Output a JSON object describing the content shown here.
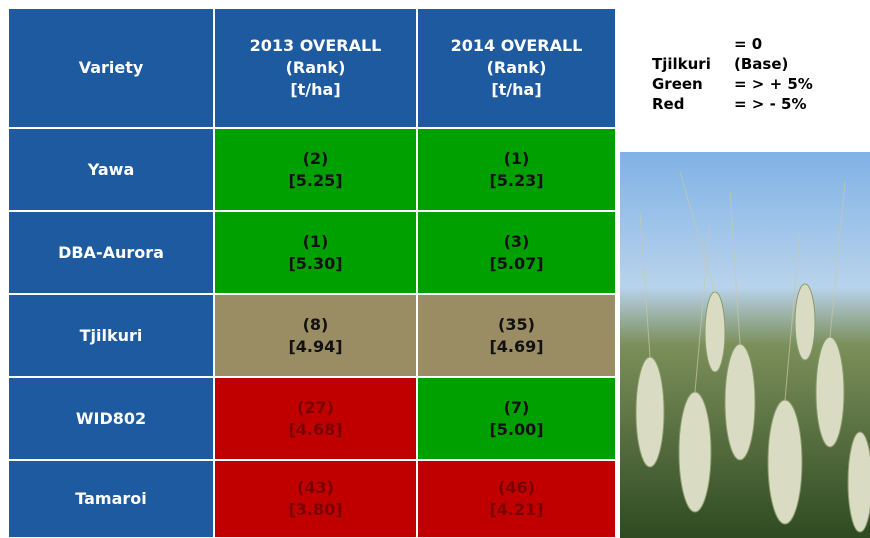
{
  "table": {
    "header": {
      "variety": "Variety",
      "columns": [
        [
          "2013 OVERALL",
          "(Rank)",
          "[t/ha]"
        ],
        [
          "2014 OVERALL",
          "(Rank)",
          "[t/ha]"
        ]
      ]
    },
    "rows": [
      {
        "variety": "Yawa",
        "cells": [
          {
            "rank": "(2)",
            "value": "[5.25]",
            "color": "#00a000"
          },
          {
            "rank": "(1)",
            "value": "[5.23]",
            "color": "#00a000"
          }
        ]
      },
      {
        "variety": "DBA-Aurora",
        "cells": [
          {
            "rank": "(1)",
            "value": "[5.30]",
            "color": "#00a000"
          },
          {
            "rank": "(3)",
            "value": "[5.07]",
            "color": "#00a000"
          }
        ]
      },
      {
        "variety": "Tjilkuri",
        "cells": [
          {
            "rank": "(8)",
            "value": "[4.94]",
            "color": "#9a8c63"
          },
          {
            "rank": "(35)",
            "value": "[4.69]",
            "color": "#9a8c63"
          }
        ]
      },
      {
        "variety": "WID802",
        "cells": [
          {
            "rank": "(27)",
            "value": "[4.68]",
            "color": "#c00000"
          },
          {
            "rank": "(7)",
            "value": "[5.00]",
            "color": "#00a000"
          }
        ]
      },
      {
        "variety": "Tamaroi",
        "cells": [
          {
            "rank": "(43)",
            "value": "[3.80]",
            "color": "#c00000"
          },
          {
            "rank": "(46)",
            "value": "[4.21]",
            "color": "#c00000"
          }
        ]
      }
    ]
  },
  "legend": [
    [
      "Tjilkuri",
      "= 0 (Base)"
    ],
    [
      "Green",
      "= > + 5%"
    ],
    [
      "Red",
      "= > - 5%"
    ]
  ]
}
